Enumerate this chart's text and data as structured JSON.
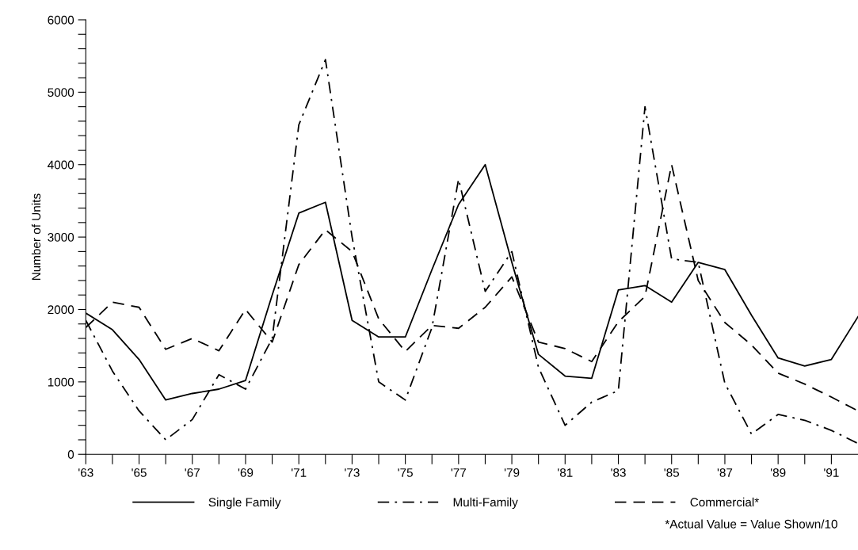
{
  "chart_data": {
    "type": "line",
    "ylabel": "Number of Units",
    "x": [
      1963,
      1964,
      1965,
      1966,
      1967,
      1968,
      1969,
      1970,
      1971,
      1972,
      1973,
      1974,
      1975,
      1976,
      1977,
      1978,
      1979,
      1980,
      1981,
      1982,
      1983,
      1984,
      1985,
      1986,
      1987,
      1988,
      1989,
      1990,
      1991,
      1992
    ],
    "series": [
      {
        "name": "Single Family",
        "color": "#000000",
        "line_style": "solid",
        "values": [
          1950,
          1720,
          1310,
          750,
          840,
          900,
          1020,
          2200,
          3330,
          3480,
          1850,
          1620,
          1620,
          2550,
          3450,
          4000,
          2650,
          1380,
          1080,
          1050,
          2270,
          2330,
          2100,
          2650,
          2550,
          1920,
          1330,
          1220,
          1310,
          1900
        ]
      },
      {
        "name": "Multi-Family",
        "color": "#000000",
        "line_style": "dashdot",
        "values": [
          1850,
          1150,
          600,
          200,
          480,
          1100,
          900,
          1600,
          4550,
          5450,
          3000,
          1000,
          750,
          1750,
          3800,
          2250,
          2800,
          1200,
          400,
          720,
          880,
          4800,
          2700,
          2650,
          980,
          280,
          550,
          470,
          330,
          150
        ]
      },
      {
        "name": "Commercial*",
        "color": "#000000",
        "line_style": "dashed",
        "values": [
          1750,
          2100,
          2030,
          1450,
          1600,
          1430,
          2000,
          1550,
          2620,
          3100,
          2800,
          1870,
          1420,
          1780,
          1740,
          2030,
          2450,
          1550,
          1460,
          1280,
          1830,
          2180,
          4000,
          2400,
          1820,
          1510,
          1120,
          970,
          790,
          600
        ]
      }
    ],
    "xlim": [
      1963,
      1992
    ],
    "xticks": [
      {
        "value": 1963,
        "label": "'63"
      },
      {
        "value": 1964,
        "label": null
      },
      {
        "value": 1965,
        "label": "'65"
      },
      {
        "value": 1966,
        "label": null
      },
      {
        "value": 1967,
        "label": "'67"
      },
      {
        "value": 1968,
        "label": null
      },
      {
        "value": 1969,
        "label": "'69"
      },
      {
        "value": 1970,
        "label": null
      },
      {
        "value": 1971,
        "label": "'71"
      },
      {
        "value": 1972,
        "label": null
      },
      {
        "value": 1973,
        "label": "'73"
      },
      {
        "value": 1974,
        "label": null
      },
      {
        "value": 1975,
        "label": "'75"
      },
      {
        "value": 1976,
        "label": null
      },
      {
        "value": 1977,
        "label": "'77"
      },
      {
        "value": 1978,
        "label": null
      },
      {
        "value": 1979,
        "label": "'79"
      },
      {
        "value": 1980,
        "label": null
      },
      {
        "value": 1981,
        "label": "'81"
      },
      {
        "value": 1982,
        "label": null
      },
      {
        "value": 1983,
        "label": "'83"
      },
      {
        "value": 1984,
        "label": null
      },
      {
        "value": 1985,
        "label": "'85"
      },
      {
        "value": 1986,
        "label": null
      },
      {
        "value": 1987,
        "label": "'87"
      },
      {
        "value": 1988,
        "label": null
      },
      {
        "value": 1989,
        "label": "'89"
      },
      {
        "value": 1990,
        "label": null
      },
      {
        "value": 1991,
        "label": "'91"
      }
    ],
    "ylim": [
      0,
      6000
    ],
    "yticks": [
      0,
      {
        "value": 200,
        "label": null
      },
      {
        "value": 400,
        "label": null
      },
      {
        "value": 600,
        "label": null
      },
      {
        "value": 800,
        "label": null
      },
      1000,
      {
        "value": 1200,
        "label": null
      },
      {
        "value": 1400,
        "label": null
      },
      {
        "value": 1600,
        "label": null
      },
      {
        "value": 1800,
        "label": null
      },
      2000,
      {
        "value": 2200,
        "label": null
      },
      {
        "value": 2400,
        "label": null
      },
      {
        "value": 2600,
        "label": null
      },
      {
        "value": 2800,
        "label": null
      },
      3000,
      {
        "value": 3200,
        "label": null
      },
      {
        "value": 3400,
        "label": null
      },
      {
        "value": 3600,
        "label": null
      },
      {
        "value": 3800,
        "label": null
      },
      4000,
      {
        "value": 4200,
        "label": null
      },
      {
        "value": 4400,
        "label": null
      },
      {
        "value": 4600,
        "label": null
      },
      {
        "value": 4800,
        "label": null
      },
      5000,
      {
        "value": 5200,
        "label": null
      },
      {
        "value": 5400,
        "label": null
      },
      {
        "value": 5600,
        "label": null
      },
      {
        "value": 5800,
        "label": null
      },
      6000
    ],
    "grid": false,
    "legend": "bottom",
    "annotations": [
      "*Actual Value = Value Shown/10"
    ]
  }
}
